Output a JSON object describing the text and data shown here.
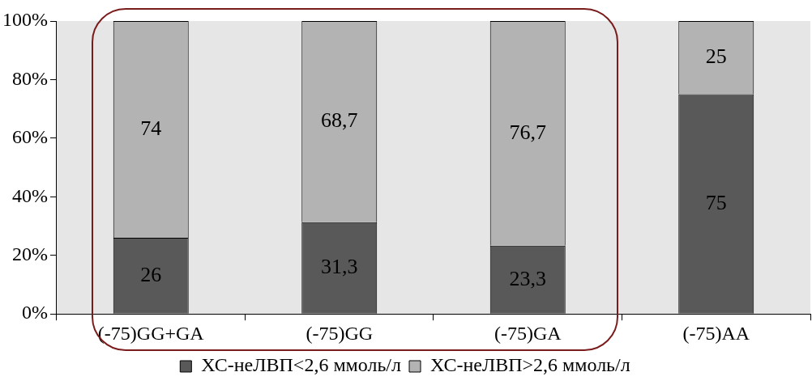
{
  "chart_data": {
    "type": "bar",
    "stacked": true,
    "categories": [
      "(-75)GG+GA",
      "(-75)GG",
      "(-75)GA",
      "(-75)AA"
    ],
    "series": [
      {
        "name": "ХС-неЛВП<2,6 ммоль/л",
        "color": "#595959",
        "values": [
          26,
          31.3,
          23.3,
          75
        ],
        "value_labels": [
          "26",
          "31,3",
          "23,3",
          "75"
        ]
      },
      {
        "name": "ХС-неЛВП>2,6 ммоль/л",
        "color": "#b3b3b3",
        "values": [
          74,
          68.7,
          76.7,
          25
        ],
        "value_labels": [
          "74",
          "68,7",
          "76,7",
          "25"
        ]
      }
    ],
    "ylim": [
      0,
      100
    ],
    "yticks": [
      {
        "value": 0,
        "label": "0%"
      },
      {
        "value": 20,
        "label": "20%"
      },
      {
        "value": 40,
        "label": "40%"
      },
      {
        "value": 60,
        "label": "60%"
      },
      {
        "value": 80,
        "label": "80%"
      },
      {
        "value": 100,
        "label": "100%"
      }
    ],
    "grid": false,
    "legend": "bottom"
  }
}
